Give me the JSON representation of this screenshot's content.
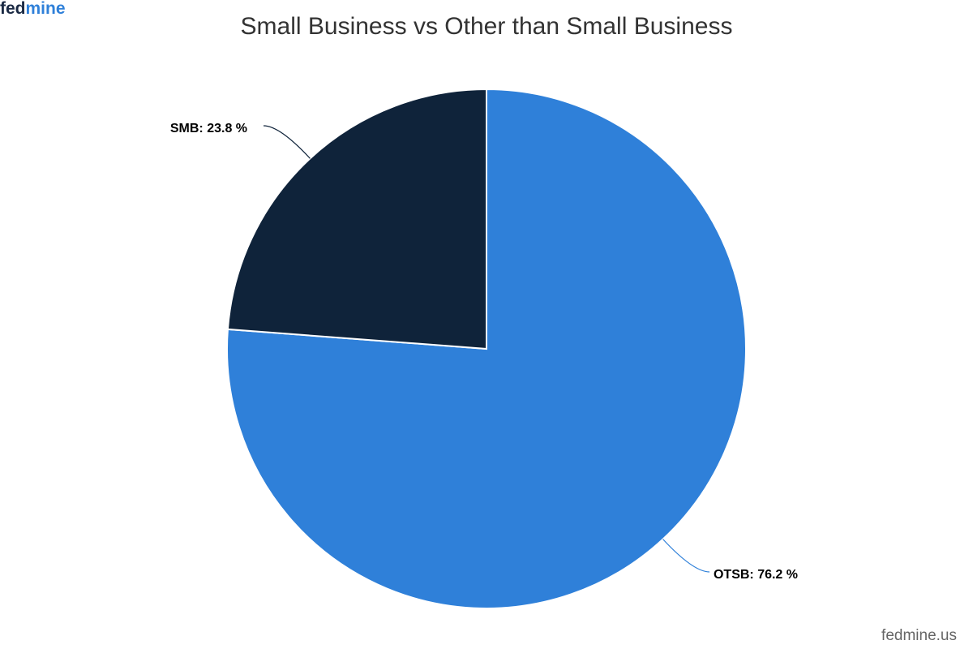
{
  "brand": {
    "logo_dark": "fed",
    "logo_blue": "mine",
    "credit": "fedmine.us"
  },
  "chart_data": {
    "type": "pie",
    "title": "Small Business vs Other than Small Business",
    "values": [
      76.2,
      23.8
    ],
    "value_labels": [
      "OTSB: 76.2 %",
      "SMB: 23.8 %"
    ],
    "colors": [
      "#2f80d9",
      "#0f233a"
    ]
  }
}
